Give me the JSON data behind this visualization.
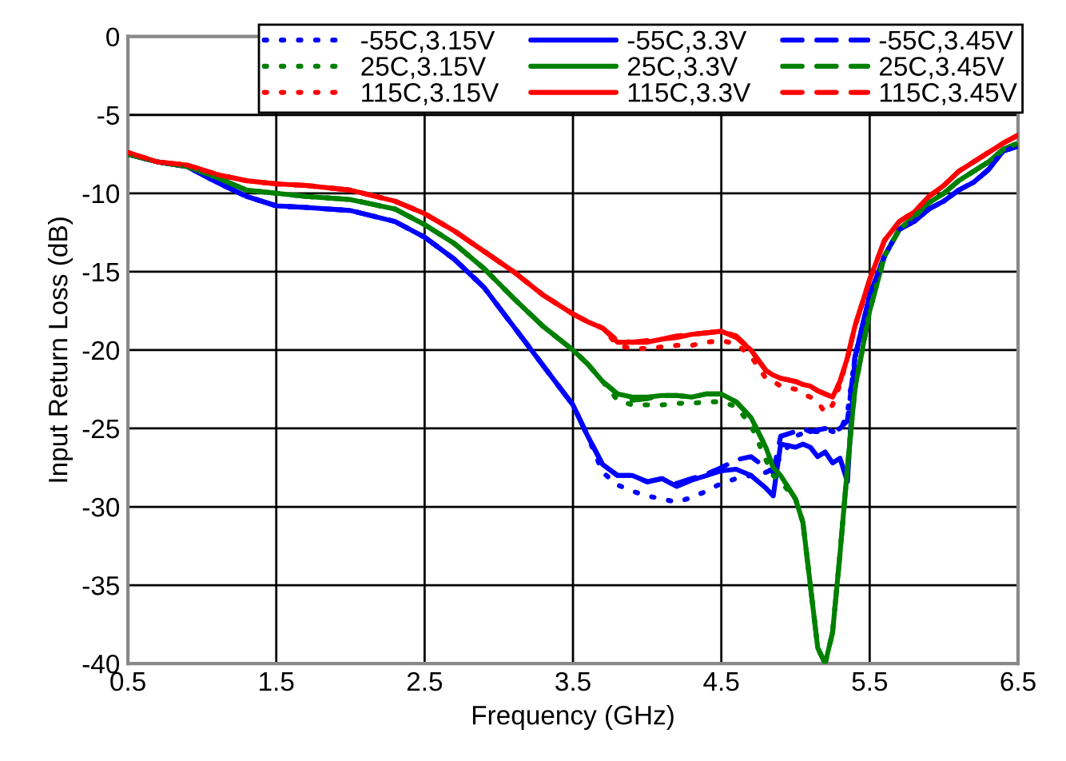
{
  "chart_data": {
    "type": "line",
    "xlabel": "Frequency (GHz)",
    "ylabel": "Input Return Loss (dB)",
    "x": [
      0.5,
      0.7,
      0.9,
      1.1,
      1.3,
      1.5,
      1.7,
      2.0,
      2.3,
      2.5,
      2.7,
      2.9,
      3.1,
      3.3,
      3.5,
      3.6,
      3.7,
      3.8,
      3.9,
      4.0,
      4.1,
      4.2,
      4.3,
      4.4,
      4.5,
      4.6,
      4.7,
      4.8,
      4.85,
      4.9,
      5.0,
      5.05,
      5.1,
      5.15,
      5.2,
      5.25,
      5.3,
      5.35,
      5.4,
      5.5,
      5.6,
      5.7,
      5.8,
      5.9,
      6.0,
      6.1,
      6.2,
      6.3,
      6.4,
      6.5
    ],
    "series": [
      {
        "name": "-55C,3.15V",
        "color": "#0000ff",
        "line_style": "dotted",
        "values": [
          -7.5,
          -8.0,
          -8.3,
          -9.3,
          -10.2,
          -10.8,
          -10.9,
          -11.1,
          -11.8,
          -12.8,
          -14.2,
          -16.0,
          -18.5,
          -21.0,
          -23.5,
          -25.5,
          -27.8,
          -28.6,
          -29.0,
          -29.3,
          -29.5,
          -29.7,
          -29.4,
          -29.0,
          -28.5,
          -28.2,
          -28.0,
          -27.8,
          -27.6,
          -26.8,
          -25.5,
          -25.3,
          -25.2,
          -25.2,
          -25.0,
          -25.2,
          -25.2,
          -24.0,
          -20.5,
          -16.5,
          -14.0,
          -12.3,
          -11.8,
          -11.0,
          -10.5,
          -9.8,
          -9.3,
          -8.5,
          -7.3,
          -7.0
        ]
      },
      {
        "name": "25C,3.15V",
        "color": "#008000",
        "line_style": "dotted",
        "values": [
          -7.5,
          -8.0,
          -8.3,
          -9.0,
          -9.8,
          -10.0,
          -10.2,
          -10.4,
          -11.0,
          -12.0,
          -13.2,
          -14.8,
          -16.7,
          -18.5,
          -20.0,
          -20.9,
          -22.0,
          -23.2,
          -23.5,
          -23.5,
          -23.5,
          -23.4,
          -23.4,
          -23.3,
          -23.3,
          -23.6,
          -24.8,
          -27.0,
          -28.0,
          -28.4,
          -29.5,
          -31.0,
          -35.0,
          -39.0,
          -40.0,
          -38.0,
          -33.0,
          -27.5,
          -22.5,
          -17.5,
          -14.0,
          -12.3,
          -11.5,
          -10.6,
          -10.0,
          -9.2,
          -8.6,
          -8.0,
          -7.2,
          -6.8
        ]
      },
      {
        "name": "115C,3.15V",
        "color": "#ff0000",
        "line_style": "dotted",
        "values": [
          -7.4,
          -8.0,
          -8.2,
          -8.8,
          -9.2,
          -9.4,
          -9.5,
          -9.8,
          -10.5,
          -11.3,
          -12.4,
          -13.7,
          -15.0,
          -16.5,
          -17.7,
          -18.2,
          -18.6,
          -19.7,
          -19.9,
          -19.9,
          -19.8,
          -19.7,
          -19.7,
          -19.5,
          -19.4,
          -19.6,
          -20.4,
          -21.8,
          -22.0,
          -22.3,
          -22.5,
          -22.8,
          -23.0,
          -23.3,
          -24.0,
          -23.5,
          -22.2,
          -20.5,
          -18.5,
          -15.5,
          -13.0,
          -11.8,
          -11.2,
          -10.2,
          -9.5,
          -8.6,
          -8.0,
          -7.4,
          -6.8,
          -6.3
        ]
      },
      {
        "name": "-55C,3.3V",
        "color": "#0000ff",
        "line_style": "solid",
        "values": [
          -7.5,
          -8.0,
          -8.3,
          -9.3,
          -10.2,
          -10.8,
          -10.9,
          -11.1,
          -11.8,
          -12.8,
          -14.2,
          -16.0,
          -18.5,
          -21.0,
          -23.5,
          -25.5,
          -27.3,
          -28.0,
          -28.0,
          -28.4,
          -28.2,
          -28.7,
          -28.3,
          -28.0,
          -27.7,
          -27.6,
          -28.0,
          -28.8,
          -29.3,
          -26.0,
          -26.2,
          -26.0,
          -26.2,
          -26.8,
          -26.5,
          -27.2,
          -26.9,
          -28.4,
          -20.5,
          -16.5,
          -14.0,
          -12.3,
          -11.8,
          -11.0,
          -10.5,
          -9.8,
          -9.3,
          -8.5,
          -7.3,
          -7.0
        ]
      },
      {
        "name": "25C,3.3V",
        "color": "#008000",
        "line_style": "solid",
        "values": [
          -7.5,
          -8.0,
          -8.3,
          -9.0,
          -9.8,
          -10.0,
          -10.2,
          -10.4,
          -11.0,
          -12.0,
          -13.2,
          -14.8,
          -16.7,
          -18.5,
          -20.0,
          -20.9,
          -22.0,
          -22.8,
          -23.0,
          -23.0,
          -22.9,
          -22.9,
          -23.0,
          -22.8,
          -22.8,
          -23.3,
          -24.3,
          -26.2,
          -27.5,
          -28.0,
          -29.5,
          -31.0,
          -35.0,
          -39.0,
          -40.0,
          -38.0,
          -33.0,
          -27.5,
          -22.5,
          -17.5,
          -14.0,
          -12.3,
          -11.5,
          -10.6,
          -10.0,
          -9.2,
          -8.6,
          -8.0,
          -7.2,
          -6.8
        ]
      },
      {
        "name": "115C,3.3V",
        "color": "#ff0000",
        "line_style": "solid",
        "values": [
          -7.4,
          -8.0,
          -8.2,
          -8.8,
          -9.2,
          -9.4,
          -9.5,
          -9.8,
          -10.5,
          -11.3,
          -12.4,
          -13.7,
          -15.0,
          -16.5,
          -17.7,
          -18.2,
          -18.6,
          -19.5,
          -19.5,
          -19.5,
          -19.3,
          -19.2,
          -19.0,
          -18.9,
          -18.8,
          -19.2,
          -20.0,
          -21.3,
          -21.6,
          -21.8,
          -22.0,
          -22.2,
          -22.3,
          -22.6,
          -22.8,
          -23.0,
          -22.0,
          -20.5,
          -18.5,
          -15.5,
          -13.0,
          -11.8,
          -11.2,
          -10.2,
          -9.5,
          -8.6,
          -8.0,
          -7.4,
          -6.8,
          -6.3
        ]
      },
      {
        "name": "-55C,3.45V",
        "color": "#0000ff",
        "line_style": "dashed",
        "values": [
          -7.5,
          -8.0,
          -8.3,
          -9.3,
          -10.2,
          -10.8,
          -10.9,
          -11.1,
          -11.8,
          -12.8,
          -14.2,
          -16.0,
          -18.5,
          -21.0,
          -23.5,
          -25.5,
          -27.3,
          -28.0,
          -28.0,
          -28.4,
          -28.2,
          -28.5,
          -28.2,
          -27.9,
          -27.5,
          -27.0,
          -26.8,
          -27.5,
          -27.8,
          -25.5,
          -25.2,
          -25.0,
          -25.2,
          -25.1,
          -25.0,
          -25.2,
          -25.0,
          -24.5,
          -20.5,
          -16.5,
          -14.0,
          -12.3,
          -11.8,
          -11.0,
          -10.5,
          -9.8,
          -9.3,
          -8.5,
          -7.3,
          -7.0
        ]
      },
      {
        "name": "25C,3.45V",
        "color": "#008000",
        "line_style": "dashed",
        "values": [
          -7.5,
          -8.0,
          -8.3,
          -9.0,
          -9.8,
          -10.0,
          -10.2,
          -10.4,
          -11.0,
          -12.0,
          -13.2,
          -14.8,
          -16.7,
          -18.5,
          -20.0,
          -20.9,
          -22.0,
          -22.8,
          -23.2,
          -23.1,
          -22.9,
          -22.9,
          -23.0,
          -22.8,
          -22.8,
          -23.3,
          -24.3,
          -26.2,
          -27.5,
          -28.0,
          -29.5,
          -31.0,
          -35.0,
          -39.0,
          -40.0,
          -38.0,
          -33.0,
          -27.5,
          -22.5,
          -17.5,
          -14.0,
          -12.3,
          -11.5,
          -10.6,
          -10.0,
          -9.2,
          -8.6,
          -8.0,
          -7.2,
          -6.8
        ]
      },
      {
        "name": "115C,3.45V",
        "color": "#ff0000",
        "line_style": "dashed",
        "values": [
          -7.4,
          -8.0,
          -8.2,
          -8.8,
          -9.2,
          -9.4,
          -9.5,
          -9.8,
          -10.5,
          -11.3,
          -12.4,
          -13.7,
          -15.0,
          -16.5,
          -17.7,
          -18.2,
          -18.6,
          -19.4,
          -19.5,
          -19.4,
          -19.3,
          -19.1,
          -19.0,
          -18.9,
          -18.8,
          -19.1,
          -20.0,
          -21.3,
          -21.6,
          -21.8,
          -22.0,
          -22.2,
          -22.3,
          -22.6,
          -22.8,
          -23.0,
          -22.0,
          -20.5,
          -18.5,
          -15.5,
          -13.0,
          -11.8,
          -11.2,
          -10.2,
          -9.5,
          -8.6,
          -8.0,
          -7.4,
          -6.8,
          -6.3
        ]
      }
    ],
    "xlim": [
      0.5,
      6.5
    ],
    "ylim": [
      -40,
      0
    ],
    "xticks": [
      0.5,
      1.5,
      2.5,
      3.5,
      4.5,
      5.5,
      6.5
    ],
    "yticks": [
      -40,
      -35,
      -30,
      -25,
      -20,
      -15,
      -10,
      -5,
      0
    ],
    "grid": true,
    "legend": "top right",
    "marker": "none"
  }
}
